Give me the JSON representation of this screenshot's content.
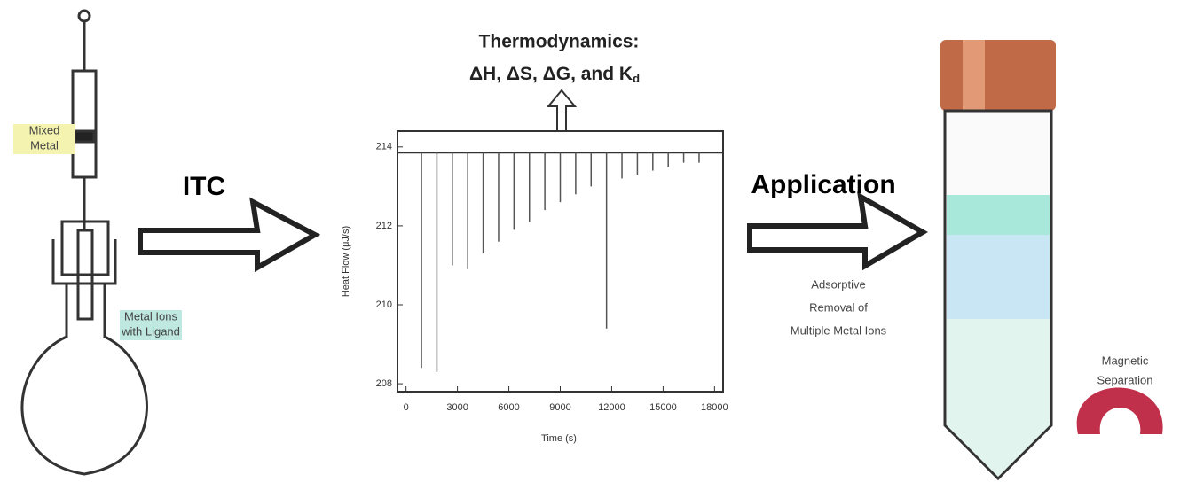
{
  "diagram": {
    "thermo_line1": "Thermodynamics:",
    "thermo_line2": "ΔH, ΔS, ΔG, and K",
    "thermo_sub": "d",
    "itc": "ITC",
    "application": "Application",
    "app_note": [
      "Adsorptive",
      "Removal of",
      "Multiple Metal Ions"
    ],
    "syringe_label": [
      "Mixed",
      "Metal"
    ],
    "flask_label": [
      "Metal Ions",
      "with Ligand"
    ],
    "magnet_label": [
      "Magnetic",
      "Separation"
    ]
  },
  "chart_data": {
    "type": "spike",
    "ylabel": "Heat Flow (μJ/s)",
    "xlabel": "Time (s)",
    "xlim": [
      -500,
      18500
    ],
    "ylim": [
      207.8,
      214.4
    ],
    "xticks": [
      0,
      3000,
      6000,
      9000,
      12000,
      15000,
      18000
    ],
    "yticks": [
      214,
      212,
      210,
      208
    ],
    "baseline": 213.85,
    "x": [
      900,
      1800,
      2700,
      3600,
      4500,
      5400,
      6300,
      7200,
      8100,
      9000,
      9900,
      10800,
      11700,
      12600,
      13500,
      14400,
      15300,
      16200,
      17100
    ],
    "values": [
      208.4,
      208.3,
      211,
      210.9,
      211.3,
      211.6,
      211.9,
      212.1,
      212.4,
      212.6,
      212.8,
      213,
      209.4,
      213.2,
      213.3,
      213.4,
      213.5,
      213.6,
      213.6
    ],
    "color": "#555"
  }
}
